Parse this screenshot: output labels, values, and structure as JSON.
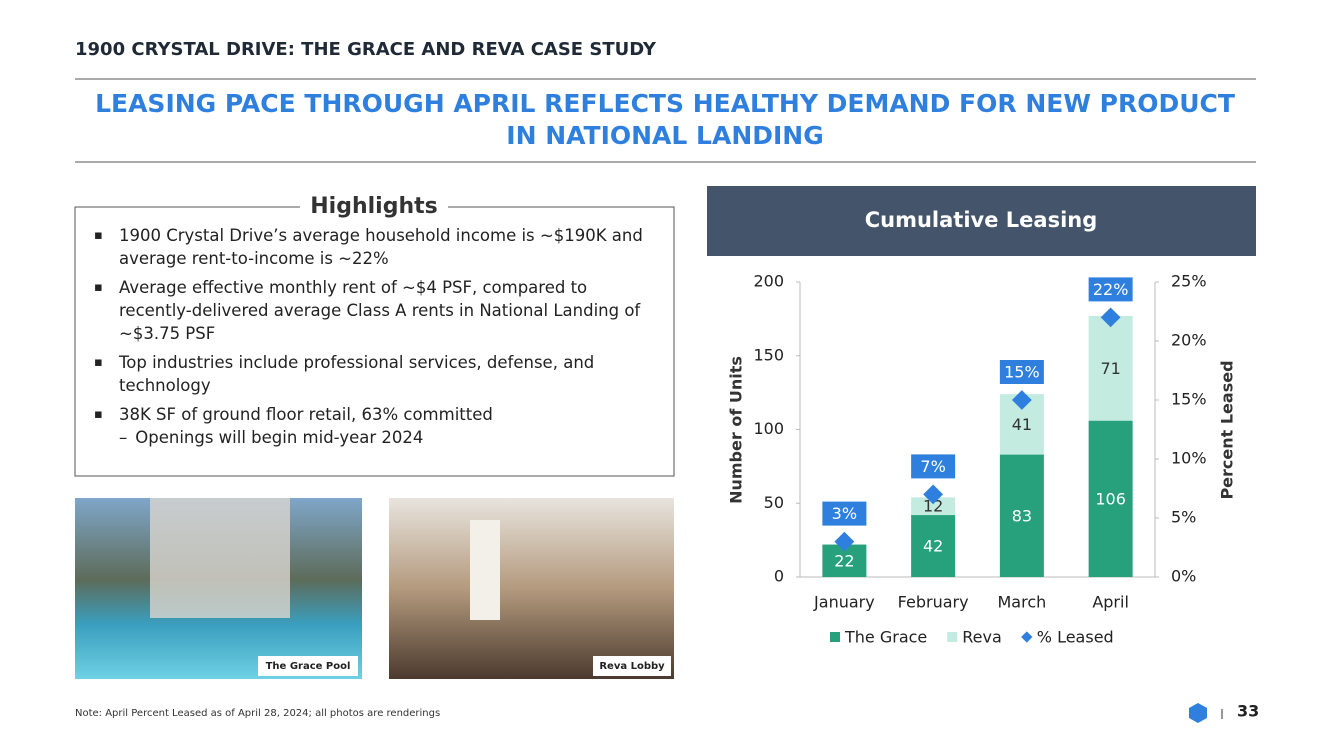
{
  "header": {
    "section": "1900 CRYSTAL DRIVE: THE GRACE AND REVA CASE STUDY",
    "title": "LEASING PACE THROUGH APRIL REFLECTS HEALTHY DEMAND FOR NEW PRODUCT IN NATIONAL LANDING"
  },
  "highlights": {
    "title": "Highlights",
    "bullets": [
      "1900 Crystal Drive’s average household income is ~$190K and average rent-to-income is ~22%",
      "Average effective monthly rent of ~$4 PSF, compared to recently-delivered average Class A rents in National Landing of ~$3.75 PSF",
      "Top industries include professional services, defense, and technology",
      "38K SF of ground floor retail, 63% committed"
    ],
    "sub_bullets": [
      "Openings will begin mid-year 2024"
    ]
  },
  "photos": [
    "The Grace Pool",
    "Reva Lobby"
  ],
  "chart_data": {
    "type": "bar",
    "stacked": true,
    "title": "Cumulative Leasing",
    "y_label": "Number of Units",
    "y2_label": "Percent Leased",
    "categories": [
      "January",
      "February",
      "March",
      "April"
    ],
    "series": [
      {
        "name": "The Grace",
        "color": "#27a07c",
        "values": [
          22,
          42,
          83,
          106
        ]
      },
      {
        "name": "Reva",
        "color": "#c3ebe0",
        "values": [
          null,
          12,
          41,
          71
        ]
      },
      {
        "name": "% Leased",
        "color": "#2f80de",
        "type": "marker",
        "axis": "y2",
        "values": [
          3,
          7,
          15,
          22
        ],
        "value_labels": [
          "3%",
          "7%",
          "15%",
          "22%"
        ]
      }
    ],
    "ylim": [
      0,
      200
    ],
    "yticks": [
      0,
      50,
      100,
      150,
      200
    ],
    "y2lim": [
      0,
      25
    ],
    "y2ticks": [
      {
        "value": 0,
        "label": "0%"
      },
      {
        "value": 5,
        "label": "5%"
      },
      {
        "value": 10,
        "label": "10%"
      },
      {
        "value": 15,
        "label": "15%"
      },
      {
        "value": 20,
        "label": "20%"
      },
      {
        "value": 25,
        "label": "25%"
      }
    ],
    "legend": "bottom"
  },
  "footer": {
    "note": "Note: April Percent Leased as of April 28, 2024; all photos are renderings",
    "page": "33"
  }
}
